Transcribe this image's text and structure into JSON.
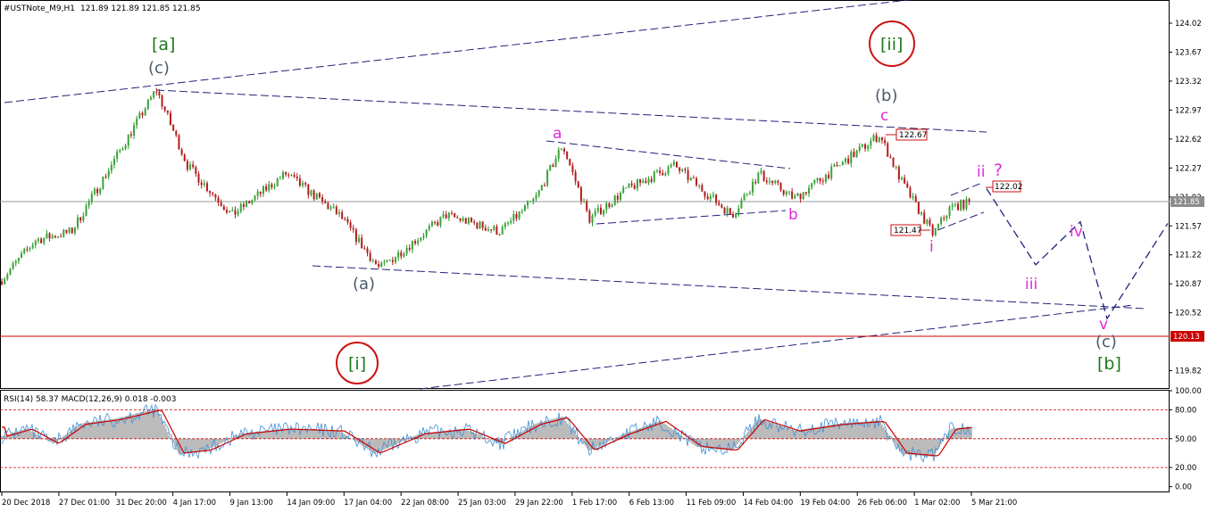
{
  "header": {
    "symbol": "#USTNote_M9,H1",
    "ohlc": "121.89 121.89 121.85 121.85"
  },
  "indicator_header": "RSI(14) 58.37 MACD(12,26,9) 0.018 -0.003",
  "colors": {
    "candle_up": "#1f9b1f",
    "candle_down": "#b21c1c",
    "candle_body_up": "#3aa23a",
    "trend_lines": "#22227a",
    "magenta_label": "#e02ad6",
    "green_label": "#1d7a1d",
    "gray_label": "#4b5a6a",
    "circle": "#cc1111",
    "support_line": "#cc0000",
    "rsi_line": "#3d8fd6",
    "macd_signal": "#cc0000",
    "macd_hist": "#bbbbbb"
  },
  "chart_data": [
    {
      "type": "candlestick",
      "price_axis": {
        "ticks": [
          "124.02",
          "123.67",
          "123.32",
          "122.97",
          "122.62",
          "122.27",
          "121.92",
          "121.57",
          "121.22",
          "120.87",
          "120.52",
          "119.82"
        ],
        "current_price_label": "121.85",
        "current_price": 121.85,
        "ylim": [
          119.6,
          124.3
        ]
      },
      "time_axis": {
        "ticks": [
          "20 Dec 2018",
          "27 Dec 01:00",
          "31 Dec 20:00",
          "4 Jan 17:00",
          "9 Jan 13:00",
          "14 Jan 09:00",
          "17 Jan 04:00",
          "22 Jan 08:00",
          "25 Jan 03:00",
          "29 Jan 22:00",
          "1 Feb 17:00",
          "6 Feb 13:00",
          "11 Feb 09:00",
          "14 Feb 04:00",
          "19 Feb 04:00",
          "26 Feb 06:00",
          "1 Mar 02:00",
          "5 Mar 21:00"
        ]
      },
      "price_path": [
        [
          0,
          120.9
        ],
        [
          40,
          121.4
        ],
        [
          80,
          121.5
        ],
        [
          130,
          122.4
        ],
        [
          175,
          123.22
        ],
        [
          210,
          122.3
        ],
        [
          260,
          121.7
        ],
        [
          320,
          122.2
        ],
        [
          380,
          121.7
        ],
        [
          425,
          121.05
        ],
        [
          500,
          121.7
        ],
        [
          560,
          121.5
        ],
        [
          600,
          121.9
        ],
        [
          630,
          122.55
        ],
        [
          660,
          121.65
        ],
        [
          700,
          122.0
        ],
        [
          755,
          122.3
        ],
        [
          820,
          121.7
        ],
        [
          850,
          122.2
        ],
        [
          890,
          121.9
        ],
        [
          940,
          122.3
        ],
        [
          985,
          122.67
        ],
        [
          1010,
          122.1
        ],
        [
          1045,
          121.47
        ],
        [
          1065,
          121.8
        ],
        [
          1088,
          121.85
        ]
      ],
      "horizontal_line": {
        "price": 120.13,
        "label": "120.13"
      },
      "price_boxes": [
        {
          "label": "122.67",
          "price": 122.67
        },
        {
          "label": "122.02",
          "price": 122.02
        },
        {
          "label": "121.47",
          "price": 121.47
        }
      ],
      "wave_labels": [
        {
          "text": "[a]",
          "color": "green"
        },
        {
          "text": "(c)",
          "color": "gray"
        },
        {
          "text": "(a)",
          "color": "gray"
        },
        {
          "text": "[i]",
          "color": "green",
          "circled": true
        },
        {
          "text": "[ii]",
          "color": "green",
          "circled": true
        },
        {
          "text": "(b)",
          "color": "gray"
        },
        {
          "text": "a",
          "color": "magenta"
        },
        {
          "text": "b",
          "color": "magenta"
        },
        {
          "text": "c",
          "color": "magenta"
        },
        {
          "text": "i",
          "color": "magenta"
        },
        {
          "text": "ii",
          "color": "magenta"
        },
        {
          "text": "?",
          "color": "magenta"
        },
        {
          "text": "iii",
          "color": "magenta"
        },
        {
          "text": "iv",
          "color": "magenta"
        },
        {
          "text": "v",
          "color": "magenta"
        },
        {
          "text": "(c)",
          "color": "gray"
        },
        {
          "text": "[b]",
          "color": "green"
        }
      ],
      "projection_path": [
        [
          1105,
          122.02
        ],
        [
          1160,
          121.1
        ],
        [
          1210,
          121.62
        ],
        [
          1240,
          120.45
        ],
        [
          1308,
          121.6
        ]
      ]
    },
    {
      "type": "indicator",
      "name": "RSI(14) + MACD(12,26,9)",
      "rsi_value": 58.37,
      "macd_main": 0.018,
      "macd_signal": -0.003,
      "axis_ticks": [
        "100.00",
        "80.00",
        "50.00",
        "20.00",
        "0.00"
      ],
      "levels": [
        80,
        50,
        20
      ],
      "ylim": [
        -5,
        100
      ],
      "rsi_path": [
        [
          0,
          52
        ],
        [
          30,
          60
        ],
        [
          60,
          45
        ],
        [
          90,
          65
        ],
        [
          130,
          70
        ],
        [
          175,
          80
        ],
        [
          200,
          35
        ],
        [
          230,
          38
        ],
        [
          270,
          55
        ],
        [
          320,
          60
        ],
        [
          380,
          58
        ],
        [
          420,
          35
        ],
        [
          470,
          55
        ],
        [
          520,
          60
        ],
        [
          560,
          45
        ],
        [
          600,
          65
        ],
        [
          630,
          72
        ],
        [
          660,
          38
        ],
        [
          700,
          55
        ],
        [
          740,
          68
        ],
        [
          780,
          42
        ],
        [
          820,
          38
        ],
        [
          850,
          70
        ],
        [
          890,
          58
        ],
        [
          940,
          65
        ],
        [
          985,
          68
        ],
        [
          1010,
          35
        ],
        [
          1045,
          32
        ],
        [
          1065,
          60
        ],
        [
          1088,
          62
        ]
      ]
    }
  ]
}
